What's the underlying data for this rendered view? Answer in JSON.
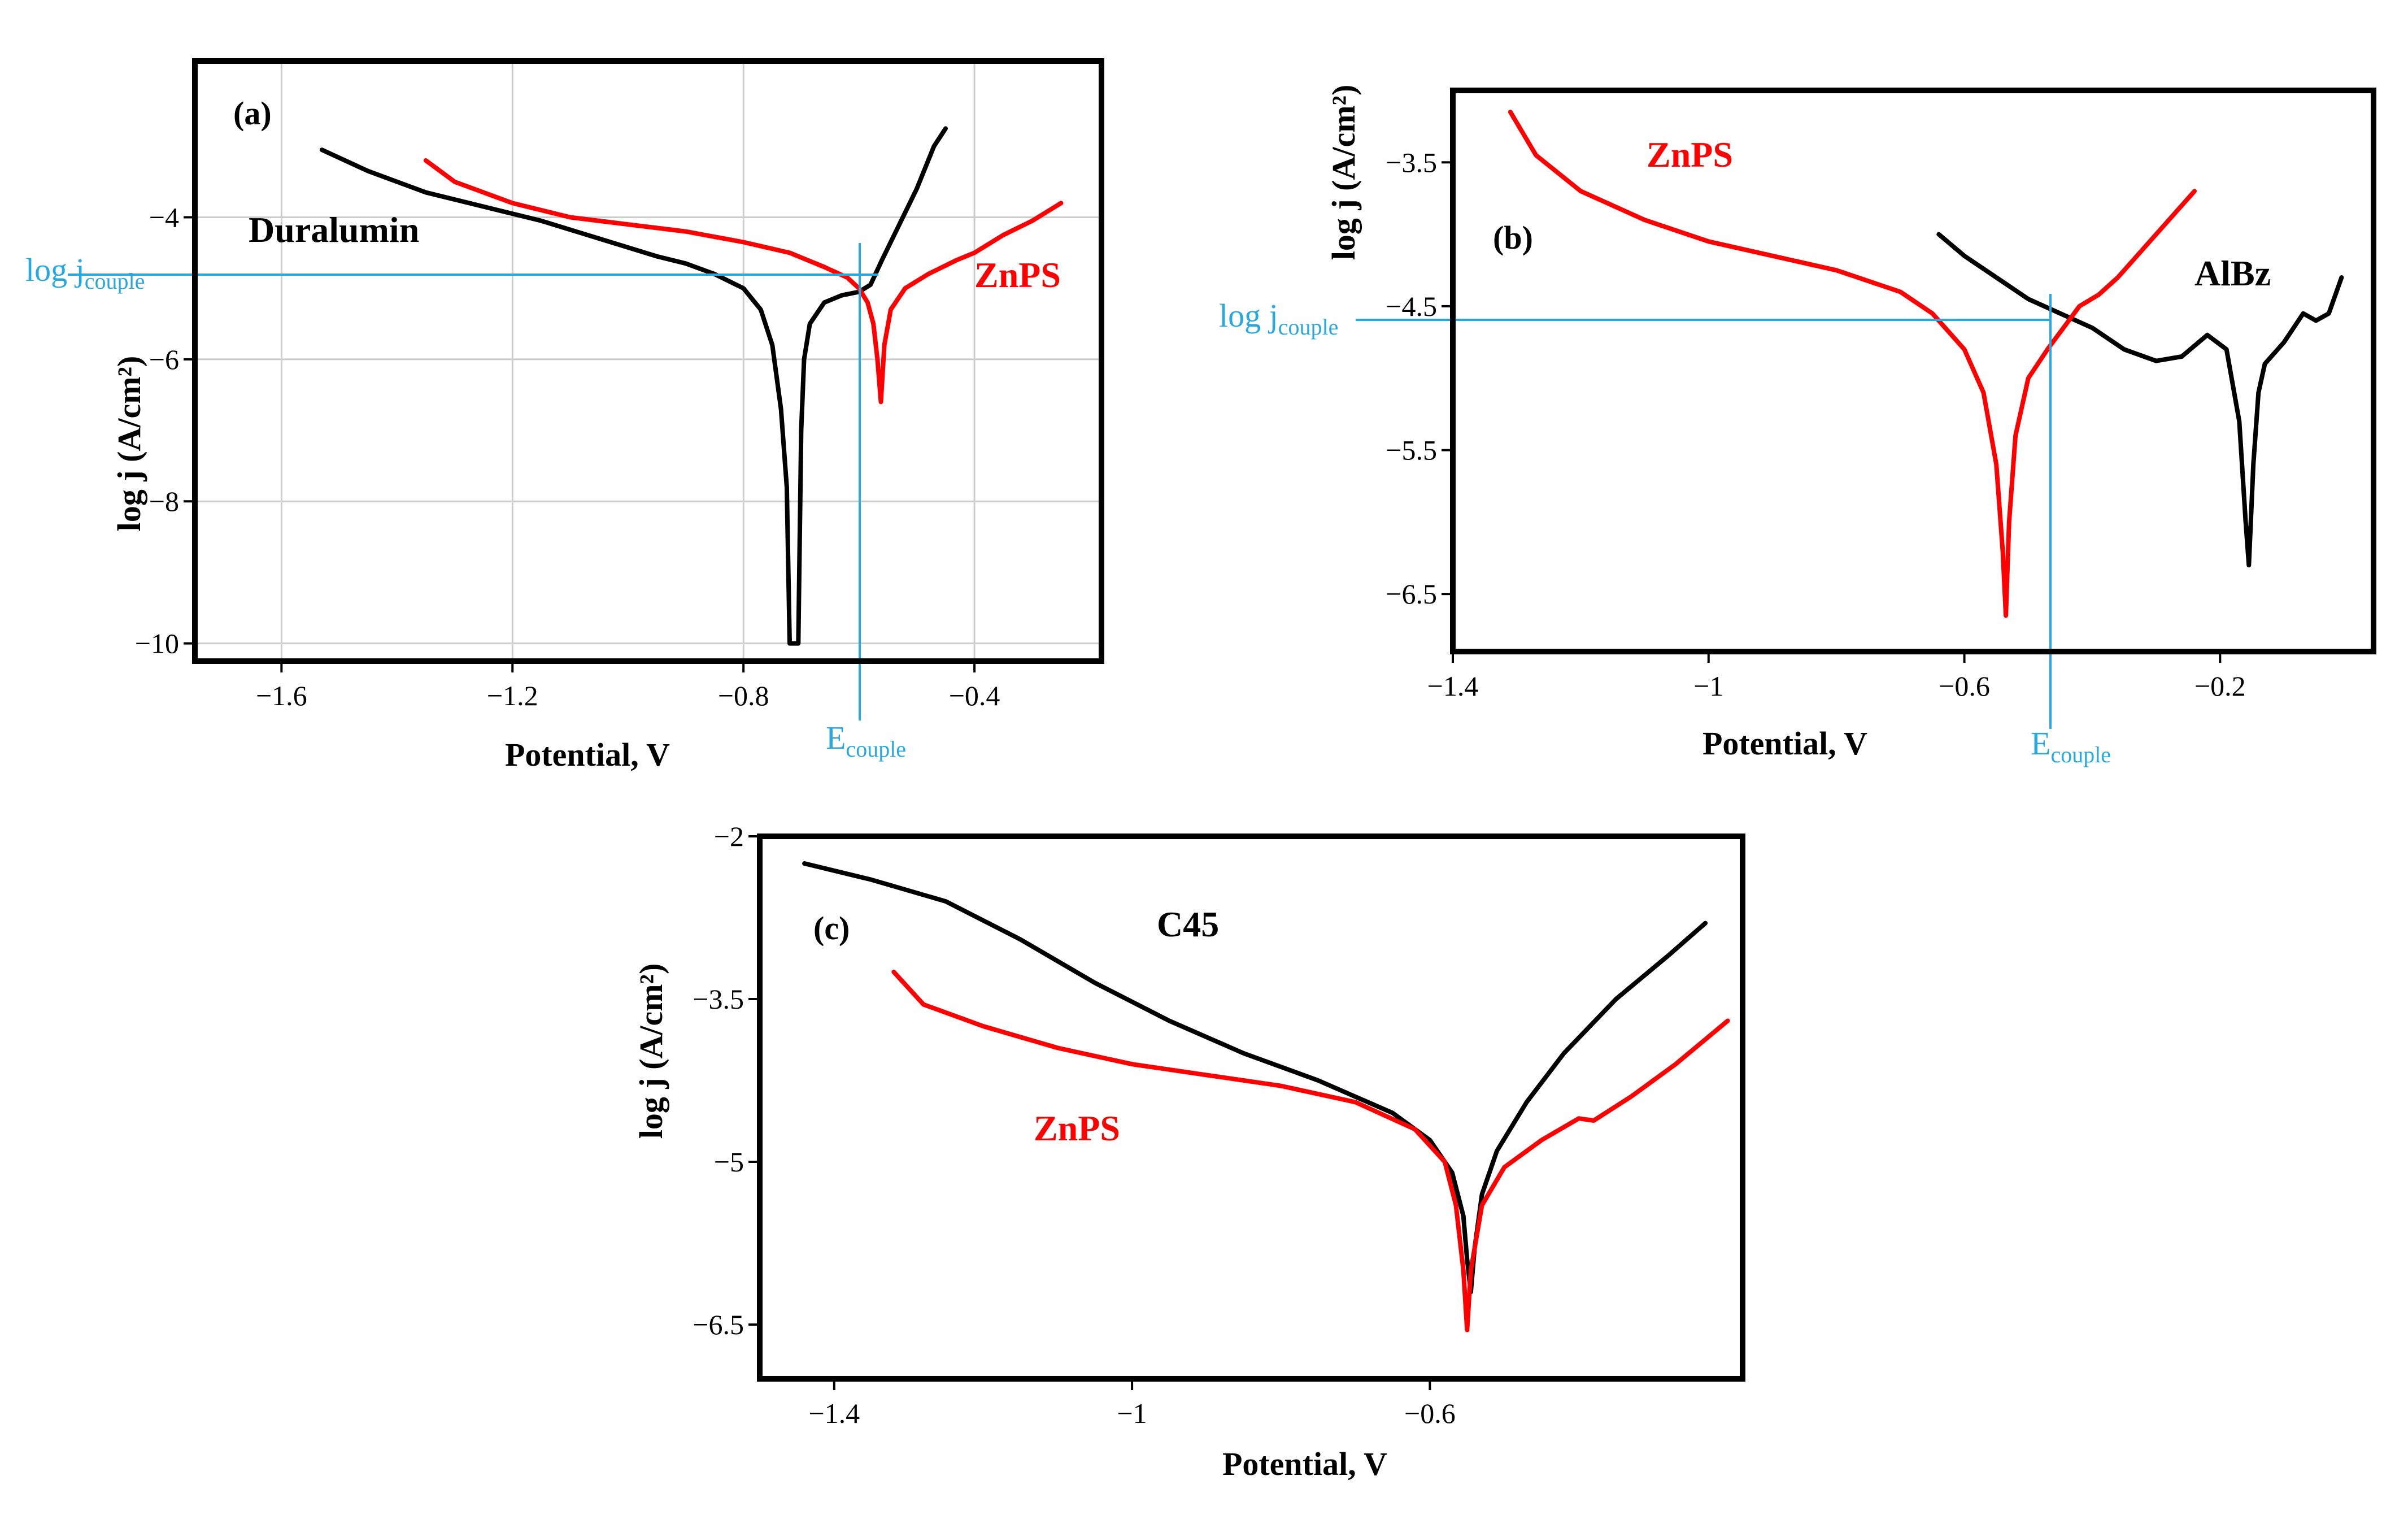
{
  "colors": {
    "black_curve": "#000000",
    "znps_curve": "#ff0000",
    "couple_line": "#29a8e0",
    "grid": "#cccccc",
    "frame": "#000000"
  },
  "chart_data": [
    {
      "type": "line",
      "panel_label": "(a)",
      "xlabel": "Potential, V",
      "ylabel": "log j (A/cm²)",
      "xlim": [
        -1.75,
        -0.18
      ],
      "ylim": [
        -10.25,
        -1.8
      ],
      "grid": true,
      "x_ticks": [
        -1.6,
        -1.2,
        -0.8,
        -0.4
      ],
      "x_tick_labels": [
        "−1.6",
        "−1.2",
        "−0.8",
        "−0.4"
      ],
      "y_ticks": [
        -4,
        -6,
        -8,
        -10
      ],
      "y_tick_labels": [
        "−4",
        "−6",
        "−8",
        "−10"
      ],
      "series": [
        {
          "name": "Duralumin",
          "color": "#000000",
          "label_text": "Duralumin",
          "points": [
            [
              -1.53,
              -3.05
            ],
            [
              -1.45,
              -3.35
            ],
            [
              -1.35,
              -3.65
            ],
            [
              -1.25,
              -3.85
            ],
            [
              -1.15,
              -4.05
            ],
            [
              -1.05,
              -4.3
            ],
            [
              -0.95,
              -4.55
            ],
            [
              -0.9,
              -4.65
            ],
            [
              -0.85,
              -4.8
            ],
            [
              -0.8,
              -5.0
            ],
            [
              -0.77,
              -5.3
            ],
            [
              -0.75,
              -5.8
            ],
            [
              -0.735,
              -6.7
            ],
            [
              -0.725,
              -7.8
            ],
            [
              -0.72,
              -10.0
            ],
            [
              -0.705,
              -10.0
            ],
            [
              -0.7,
              -7.0
            ],
            [
              -0.695,
              -6.0
            ],
            [
              -0.685,
              -5.5
            ],
            [
              -0.66,
              -5.2
            ],
            [
              -0.63,
              -5.1
            ],
            [
              -0.6,
              -5.05
            ],
            [
              -0.58,
              -4.95
            ],
            [
              -0.56,
              -4.6
            ],
            [
              -0.53,
              -4.1
            ],
            [
              -0.5,
              -3.6
            ],
            [
              -0.47,
              -3.0
            ],
            [
              -0.45,
              -2.75
            ]
          ]
        },
        {
          "name": "ZnPS",
          "color": "#ff0000",
          "label_text": "ZnPS",
          "points": [
            [
              -1.35,
              -3.2
            ],
            [
              -1.3,
              -3.5
            ],
            [
              -1.2,
              -3.8
            ],
            [
              -1.1,
              -4.0
            ],
            [
              -1.0,
              -4.1
            ],
            [
              -0.9,
              -4.2
            ],
            [
              -0.8,
              -4.35
            ],
            [
              -0.72,
              -4.5
            ],
            [
              -0.66,
              -4.7
            ],
            [
              -0.62,
              -4.85
            ],
            [
              -0.6,
              -5.0
            ],
            [
              -0.585,
              -5.2
            ],
            [
              -0.575,
              -5.5
            ],
            [
              -0.568,
              -6.0
            ],
            [
              -0.562,
              -6.6
            ],
            [
              -0.556,
              -5.8
            ],
            [
              -0.545,
              -5.3
            ],
            [
              -0.52,
              -5.0
            ],
            [
              -0.48,
              -4.8
            ],
            [
              -0.43,
              -4.6
            ],
            [
              -0.4,
              -4.5
            ],
            [
              -0.35,
              -4.25
            ],
            [
              -0.3,
              -4.05
            ],
            [
              -0.25,
              -3.8
            ]
          ]
        }
      ],
      "couple_line": {
        "log_j": -5.0,
        "E": -0.59
      },
      "log_j_couple_label": "log j",
      "log_j_couple_sub": "couple",
      "E_couple_label": "E",
      "E_couple_sub": "couple"
    },
    {
      "type": "line",
      "panel_label": "(b)",
      "xlabel": "Potential, V",
      "ylabel": "log j (A/cm²)",
      "xlim": [
        -1.4,
        0.04
      ],
      "ylim": [
        -6.9,
        -3.0
      ],
      "grid": false,
      "x_ticks": [
        -1.4,
        -1.0,
        -0.6,
        -0.2
      ],
      "x_tick_labels": [
        "−1.4",
        "−1",
        "−0.6",
        "−0.2"
      ],
      "y_ticks": [
        -3.5,
        -4.5,
        -5.5,
        -6.5
      ],
      "y_tick_labels": [
        "−3.5",
        "−4.5",
        "−5.5",
        "−6.5"
      ],
      "series": [
        {
          "name": "AlBz",
          "color": "#000000",
          "label_text": "AlBz",
          "points": [
            [
              -0.64,
              -4.0
            ],
            [
              -0.6,
              -4.15
            ],
            [
              -0.55,
              -4.3
            ],
            [
              -0.5,
              -4.45
            ],
            [
              -0.45,
              -4.55
            ],
            [
              -0.4,
              -4.65
            ],
            [
              -0.35,
              -4.8
            ],
            [
              -0.3,
              -4.88
            ],
            [
              -0.26,
              -4.85
            ],
            [
              -0.22,
              -4.7
            ],
            [
              -0.19,
              -4.8
            ],
            [
              -0.17,
              -5.3
            ],
            [
              -0.16,
              -6.0
            ],
            [
              -0.155,
              -6.3
            ],
            [
              -0.148,
              -5.6
            ],
            [
              -0.14,
              -5.1
            ],
            [
              -0.13,
              -4.9
            ],
            [
              -0.1,
              -4.75
            ],
            [
              -0.07,
              -4.55
            ],
            [
              -0.05,
              -4.6
            ],
            [
              -0.03,
              -4.55
            ],
            [
              -0.01,
              -4.3
            ]
          ]
        },
        {
          "name": "ZnPS",
          "color": "#ff0000",
          "label_text": "ZnPS",
          "points": [
            [
              -1.31,
              -3.15
            ],
            [
              -1.27,
              -3.45
            ],
            [
              -1.2,
              -3.7
            ],
            [
              -1.1,
              -3.9
            ],
            [
              -1.0,
              -4.05
            ],
            [
              -0.9,
              -4.15
            ],
            [
              -0.8,
              -4.25
            ],
            [
              -0.7,
              -4.4
            ],
            [
              -0.65,
              -4.55
            ],
            [
              -0.6,
              -4.8
            ],
            [
              -0.57,
              -5.1
            ],
            [
              -0.55,
              -5.6
            ],
            [
              -0.54,
              -6.2
            ],
            [
              -0.535,
              -6.65
            ],
            [
              -0.53,
              -6.0
            ],
            [
              -0.52,
              -5.4
            ],
            [
              -0.5,
              -5.0
            ],
            [
              -0.47,
              -4.8
            ],
            [
              -0.44,
              -4.62
            ],
            [
              -0.42,
              -4.5
            ],
            [
              -0.39,
              -4.42
            ],
            [
              -0.36,
              -4.3
            ],
            [
              -0.3,
              -4.0
            ],
            [
              -0.24,
              -3.7
            ]
          ]
        }
      ],
      "couple_line": {
        "log_j": -4.6,
        "E": -0.43
      },
      "log_j_couple_label": "log j",
      "log_j_couple_sub": "couple",
      "E_couple_label": "E",
      "E_couple_sub": "couple"
    },
    {
      "type": "line",
      "panel_label": "(c)",
      "xlabel": "Potential, V",
      "ylabel": "log j (A/cm²)",
      "xlim": [
        -1.5,
        -0.18
      ],
      "ylim": [
        -7.0,
        -2.0
      ],
      "grid": false,
      "x_ticks": [
        -1.4,
        -1.0,
        -0.6
      ],
      "x_tick_labels": [
        "−1.4",
        "−1",
        "−0.6"
      ],
      "y_ticks": [
        -2,
        -3.5,
        -5,
        -6.5
      ],
      "y_tick_labels": [
        "−2",
        "−3.5",
        "−5",
        "−6.5"
      ],
      "series": [
        {
          "name": "C45",
          "color": "#000000",
          "label_text": "C45",
          "points": [
            [
              -1.44,
              -2.25
            ],
            [
              -1.35,
              -2.4
            ],
            [
              -1.25,
              -2.6
            ],
            [
              -1.15,
              -2.95
            ],
            [
              -1.05,
              -3.35
            ],
            [
              -0.95,
              -3.7
            ],
            [
              -0.85,
              -4.0
            ],
            [
              -0.75,
              -4.25
            ],
            [
              -0.65,
              -4.55
            ],
            [
              -0.6,
              -4.8
            ],
            [
              -0.57,
              -5.1
            ],
            [
              -0.555,
              -5.5
            ],
            [
              -0.55,
              -5.9
            ],
            [
              -0.545,
              -6.2
            ],
            [
              -0.54,
              -5.8
            ],
            [
              -0.53,
              -5.3
            ],
            [
              -0.51,
              -4.9
            ],
            [
              -0.47,
              -4.45
            ],
            [
              -0.42,
              -4.0
            ],
            [
              -0.35,
              -3.5
            ],
            [
              -0.28,
              -3.1
            ],
            [
              -0.23,
              -2.8
            ]
          ]
        },
        {
          "name": "ZnPS",
          "color": "#ff0000",
          "label_text": "ZnPS",
          "points": [
            [
              -1.32,
              -3.25
            ],
            [
              -1.28,
              -3.55
            ],
            [
              -1.2,
              -3.75
            ],
            [
              -1.1,
              -3.95
            ],
            [
              -1.0,
              -4.1
            ],
            [
              -0.9,
              -4.2
            ],
            [
              -0.8,
              -4.3
            ],
            [
              -0.7,
              -4.45
            ],
            [
              -0.62,
              -4.7
            ],
            [
              -0.58,
              -5.0
            ],
            [
              -0.565,
              -5.4
            ],
            [
              -0.555,
              -6.0
            ],
            [
              -0.55,
              -6.55
            ],
            [
              -0.545,
              -6.0
            ],
            [
              -0.53,
              -5.4
            ],
            [
              -0.5,
              -5.05
            ],
            [
              -0.45,
              -4.8
            ],
            [
              -0.4,
              -4.6
            ],
            [
              -0.38,
              -4.62
            ],
            [
              -0.33,
              -4.4
            ],
            [
              -0.27,
              -4.1
            ],
            [
              -0.2,
              -3.7
            ]
          ]
        }
      ]
    }
  ]
}
